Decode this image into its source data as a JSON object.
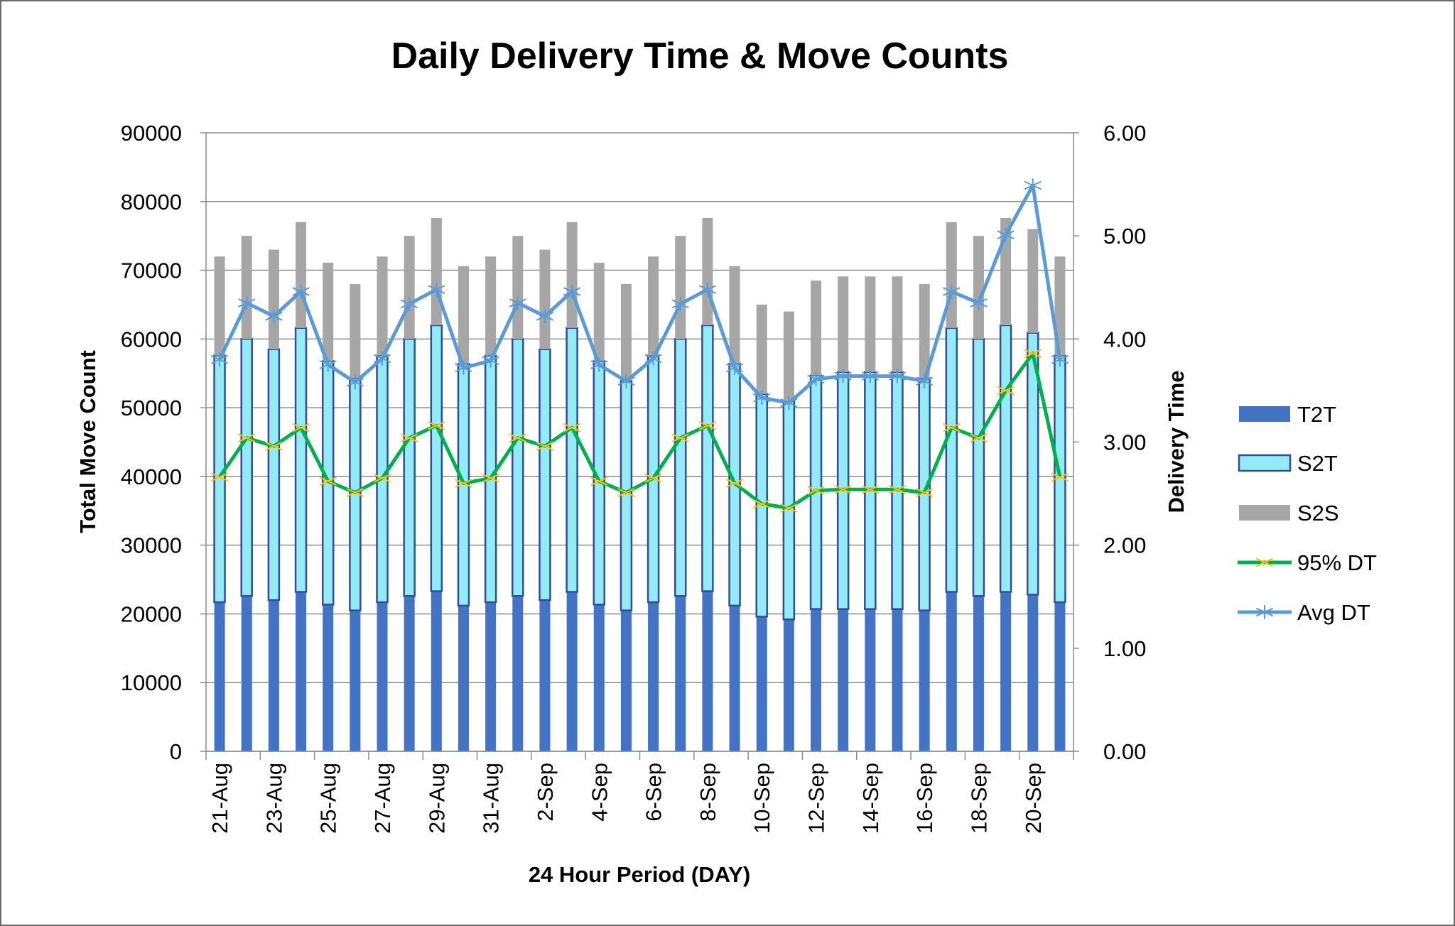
{
  "chart_data": {
    "type": "bar",
    "stacked": true,
    "title": "Daily Delivery Time & Move Counts",
    "xlabel": "24 Hour Period (DAY)",
    "ylabel": "Total Move Count",
    "y2label": "Delivery Time",
    "ylim": [
      0,
      90000
    ],
    "y2lim": [
      0,
      6
    ],
    "yticks": [
      "0",
      "10000",
      "20000",
      "30000",
      "40000",
      "50000",
      "60000",
      "70000",
      "80000",
      "90000"
    ],
    "y2ticks": [
      "0.00",
      "1.00",
      "2.00",
      "3.00",
      "4.00",
      "5.00",
      "6.00"
    ],
    "grid": true,
    "legend": "right",
    "categories": [
      "21-Aug",
      "22-Aug",
      "23-Aug",
      "24-Aug",
      "25-Aug",
      "26-Aug",
      "27-Aug",
      "28-Aug",
      "29-Aug",
      "30-Aug",
      "31-Aug",
      "1-Sep",
      "2-Sep",
      "3-Sep",
      "4-Sep",
      "5-Sep",
      "6-Sep",
      "7-Sep",
      "8-Sep",
      "9-Sep",
      "10-Sep",
      "11-Sep",
      "12-Sep",
      "13-Sep",
      "14-Sep",
      "15-Sep",
      "16-Sep",
      "17-Sep",
      "18-Sep",
      "19-Sep",
      "20-Sep",
      "21-Sep"
    ],
    "tick_labels": [
      "21-Aug",
      "23-Aug",
      "25-Aug",
      "27-Aug",
      "29-Aug",
      "31-Aug",
      "2-Sep",
      "4-Sep",
      "6-Sep",
      "8-Sep",
      "10-Sep",
      "12-Sep",
      "14-Sep",
      "16-Sep",
      "18-Sep",
      "20-Sep"
    ],
    "series": [
      {
        "name": "T2T",
        "kind": "bar",
        "axis": "left",
        "color": "#4472C4",
        "values": [
          21700,
          22600,
          22000,
          23200,
          21350,
          20500,
          21700,
          22600,
          23300,
          21200,
          21700,
          22600,
          22000,
          23200,
          21350,
          20500,
          21700,
          22600,
          23300,
          21200,
          19600,
          19200,
          20700,
          20700,
          20700,
          20700,
          20500,
          23200,
          22600,
          23200,
          22800,
          21700
        ]
      },
      {
        "name": "S2T",
        "kind": "bar",
        "axis": "left",
        "color": "#94EBF5",
        "border": "#2F4E9A",
        "values": [
          35900,
          37400,
          36500,
          38400,
          35450,
          33800,
          35900,
          37400,
          38700,
          35200,
          35900,
          37400,
          36500,
          38400,
          35450,
          33400,
          35900,
          37400,
          38700,
          35200,
          32400,
          31700,
          34000,
          34500,
          34500,
          34500,
          33800,
          38400,
          37400,
          38800,
          38100,
          35900
        ]
      },
      {
        "name": "S2S",
        "kind": "bar",
        "axis": "left",
        "color": "#A6A6A6",
        "values": [
          14400,
          15000,
          14500,
          15400,
          14300,
          13700,
          14400,
          15000,
          15600,
          14200,
          14400,
          15000,
          14500,
          15400,
          14300,
          14100,
          14400,
          15000,
          15600,
          14200,
          13000,
          13100,
          13800,
          13900,
          13900,
          13900,
          13700,
          15400,
          15000,
          15600,
          15100,
          14400
        ]
      },
      {
        "name": "95% DT",
        "kind": "line",
        "axis": "right",
        "color": "#00B050",
        "marker_color": "#FFC000",
        "values": [
          2.66,
          3.04,
          2.96,
          3.14,
          2.62,
          2.51,
          2.65,
          3.04,
          3.16,
          2.6,
          2.65,
          3.04,
          2.96,
          3.14,
          2.62,
          2.51,
          2.65,
          3.04,
          3.16,
          2.6,
          2.4,
          2.36,
          2.53,
          2.54,
          2.54,
          2.54,
          2.51,
          3.14,
          3.04,
          3.5,
          3.86,
          2.66
        ]
      },
      {
        "name": "Avg DT",
        "kind": "line",
        "axis": "right",
        "color": "#5B9BD5",
        "marker_color": "#5B9BD5",
        "values": [
          3.8,
          4.35,
          4.22,
          4.46,
          3.75,
          3.58,
          3.81,
          4.34,
          4.48,
          3.72,
          3.79,
          4.35,
          4.22,
          4.46,
          3.75,
          3.59,
          3.81,
          4.34,
          4.48,
          3.72,
          3.43,
          3.38,
          3.61,
          3.64,
          3.64,
          3.64,
          3.59,
          4.46,
          4.35,
          5.01,
          5.49,
          3.8
        ]
      }
    ]
  }
}
